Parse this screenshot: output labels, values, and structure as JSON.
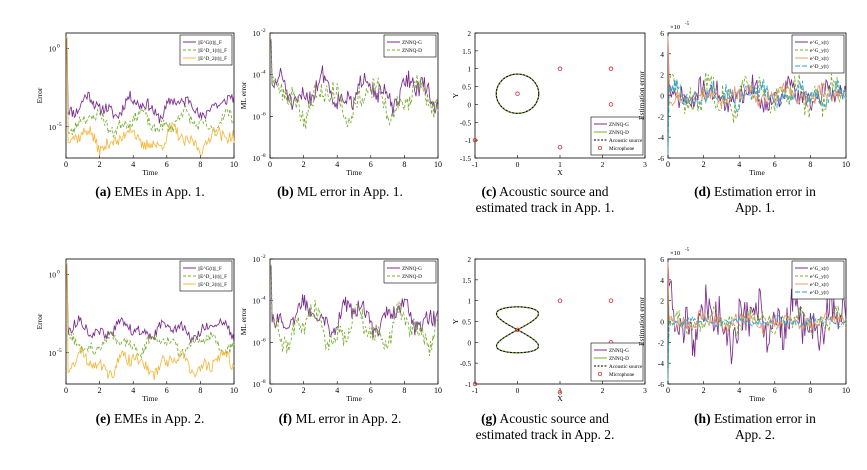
{
  "chart_data": [
    {
      "id": "a",
      "type": "line",
      "yscale": "log",
      "xlabel": "Time",
      "ylabel": "Error",
      "xlim": [
        0,
        10
      ],
      "ylim": [
        1e-07,
        10
      ],
      "xticks": [
        "0",
        "2",
        "4",
        "6",
        "8",
        "10"
      ],
      "yticks": [
        {
          "v": 1,
          "t": "10",
          "e": "0"
        },
        {
          "v": 1e-05,
          "t": "10",
          "e": "-5"
        }
      ],
      "legend": "top-right",
      "series": [
        {
          "name": "||E^G(t)||_F",
          "color": "#7b2d8e",
          "dash": "",
          "base": 0.0002,
          "amp": 0.85,
          "seed": 11
        },
        {
          "name": "||E^D_1(t)||_F",
          "color": "#77ac30",
          "dash": "3,2",
          "base": 2e-05,
          "amp": 0.85,
          "seed": 23
        },
        {
          "name": "||E^D_2(t)||_F",
          "color": "#f5b942",
          "dash": "",
          "base": 1.5e-06,
          "amp": 0.9,
          "seed": 37
        }
      ],
      "caption": {
        "label": "(a)",
        "text": "EMEs in App. 1."
      }
    },
    {
      "id": "b",
      "type": "line",
      "yscale": "log",
      "xlabel": "Time",
      "ylabel": "ML error",
      "xlim": [
        0,
        10
      ],
      "ylim": [
        1e-08,
        0.01
      ],
      "xticks": [
        "0",
        "2",
        "4",
        "6",
        "8",
        "10"
      ],
      "yticks": [
        {
          "v": 0.01,
          "t": "10",
          "e": "-2"
        },
        {
          "v": 0.0001,
          "t": "10",
          "e": "-4"
        },
        {
          "v": 1e-06,
          "t": "10",
          "e": "-6"
        },
        {
          "v": 1e-08,
          "t": "10",
          "e": "-8"
        }
      ],
      "legend": "top-right",
      "series": [
        {
          "name": "ZNNQ-G",
          "color": "#7b2d8e",
          "dash": "",
          "base": 1.5e-05,
          "amp": 1.0,
          "seed": 51
        },
        {
          "name": "ZNNQ-D",
          "color": "#77ac30",
          "dash": "3,2",
          "base": 6e-06,
          "amp": 1.1,
          "seed": 63
        }
      ],
      "caption": {
        "label": "(b)",
        "text": "ML error in App. 1."
      }
    },
    {
      "id": "c",
      "type": "scatter",
      "xlabel": "X",
      "ylabel": "Y",
      "xlim": [
        -1,
        3
      ],
      "ylim": [
        -1.5,
        2
      ],
      "xticks": [
        "-1",
        "0",
        "1",
        "2",
        "3"
      ],
      "yticks": [
        "2",
        "1.5",
        "1",
        "0.5",
        "0",
        "-0.5",
        "-1",
        "-1.5"
      ],
      "legend": "bottom-right",
      "track": "circle",
      "source": [
        [
          -0.05,
          0.3
        ],
        [
          -0.05,
          0.3
        ]
      ],
      "microphones": [
        [
          0,
          0.3
        ],
        [
          1,
          1
        ],
        [
          2.2,
          1
        ],
        [
          2.2,
          0
        ],
        [
          1,
          -1.2
        ],
        [
          -1,
          -1
        ]
      ],
      "series": [
        {
          "name": "ZNNQ-G",
          "color": "#7b2d8e"
        },
        {
          "name": "ZNNQ-D",
          "color": "#77ac30"
        },
        {
          "name": "Acoustic source",
          "color": "#000000"
        },
        {
          "name": "Microphone",
          "color": "#d62728"
        }
      ],
      "caption": {
        "label": "(c)",
        "text": "Acoustic source and estimated track in App. 1."
      }
    },
    {
      "id": "d",
      "type": "line",
      "yscale": "linear",
      "xlabel": "Time",
      "ylabel": "Estimation error",
      "xlim": [
        0,
        10
      ],
      "ylim": [
        -6,
        6
      ],
      "multiplier": "×10",
      "multiplier_exp": "-5",
      "xticks": [
        "0",
        "2",
        "4",
        "6",
        "8",
        "10"
      ],
      "yticks": [
        "6",
        "4",
        "2",
        "0",
        "-2",
        "-4",
        "-6"
      ],
      "legend": "top-right",
      "series": [
        {
          "name": "e^G_x(t)",
          "color": "#7b2d8e",
          "dash": "",
          "amp": 1.4,
          "seed": 71
        },
        {
          "name": "e^G_y(t)",
          "color": "#77ac30",
          "dash": "3,2",
          "amp": 1.8,
          "seed": 83
        },
        {
          "name": "e^D_x(t)",
          "color": "#e89b6b",
          "dash": "",
          "amp": 0.9,
          "seed": 97
        },
        {
          "name": "e^D_y(t)",
          "color": "#2a9fd6",
          "dash": "5,2",
          "amp": 1.1,
          "seed": 101
        }
      ],
      "caption": {
        "label": "(d)",
        "text": "Estimation error in App. 1."
      }
    },
    {
      "id": "e",
      "type": "line",
      "yscale": "log",
      "xlabel": "Time",
      "ylabel": "Error",
      "xlim": [
        0,
        10
      ],
      "ylim": [
        1e-07,
        10
      ],
      "xticks": [
        "0",
        "2",
        "4",
        "6",
        "8",
        "10"
      ],
      "yticks": [
        {
          "v": 1,
          "t": "10",
          "e": "0"
        },
        {
          "v": 1e-05,
          "t": "10",
          "e": "-5"
        }
      ],
      "legend": "top-right",
      "series": [
        {
          "name": "||E^G(t)||_F",
          "color": "#7b2d8e",
          "dash": "",
          "base": 0.0003,
          "amp": 0.7,
          "seed": 113
        },
        {
          "name": "||E^D_1(t)||_F",
          "color": "#77ac30",
          "dash": "3,2",
          "base": 4e-05,
          "amp": 0.8,
          "seed": 127
        },
        {
          "name": "||E^D_2(t)||_F",
          "color": "#f5b942",
          "dash": "",
          "base": 2e-06,
          "amp": 0.9,
          "seed": 131
        }
      ],
      "caption": {
        "label": "(e)",
        "text": "EMEs in App. 2."
      }
    },
    {
      "id": "f",
      "type": "line",
      "yscale": "log",
      "xlabel": "Time",
      "ylabel": "ML error",
      "xlim": [
        0,
        10
      ],
      "ylim": [
        1e-08,
        0.01
      ],
      "xticks": [
        "0",
        "2",
        "4",
        "6",
        "8",
        "10"
      ],
      "yticks": [
        {
          "v": 0.01,
          "t": "10",
          "e": "-2"
        },
        {
          "v": 0.0001,
          "t": "10",
          "e": "-4"
        },
        {
          "v": 1e-06,
          "t": "10",
          "e": "-6"
        },
        {
          "v": 1e-08,
          "t": "10",
          "e": "-8"
        }
      ],
      "legend": "top-right",
      "series": [
        {
          "name": "ZNNQ-G",
          "color": "#7b2d8e",
          "dash": "",
          "base": 2e-05,
          "amp": 0.9,
          "seed": 141
        },
        {
          "name": "ZNNQ-D",
          "color": "#77ac30",
          "dash": "3,2",
          "base": 5e-06,
          "amp": 1.1,
          "seed": 153
        }
      ],
      "caption": {
        "label": "(f)",
        "text": "ML error in App. 2."
      }
    },
    {
      "id": "g",
      "type": "scatter",
      "xlabel": "X",
      "ylabel": "Y",
      "xlim": [
        -1,
        3
      ],
      "ylim": [
        -1,
        2
      ],
      "xticks": [
        "-1",
        "0",
        "1",
        "2",
        "3"
      ],
      "yticks": [
        "2",
        "1.5",
        "1",
        "0.5",
        "0",
        "-0.5",
        "-1"
      ],
      "legend": "bottom-right",
      "track": "lemniscate",
      "microphones": [
        [
          0,
          0.3
        ],
        [
          1,
          1
        ],
        [
          2.2,
          1
        ],
        [
          2.2,
          0
        ],
        [
          1,
          -1.2
        ],
        [
          -1,
          -1
        ]
      ],
      "series": [
        {
          "name": "ZNNQ-G",
          "color": "#7b2d8e"
        },
        {
          "name": "ZNNQ-D",
          "color": "#77ac30"
        },
        {
          "name": "Acoustic source",
          "color": "#000000"
        },
        {
          "name": "Microphone",
          "color": "#d62728"
        }
      ],
      "caption": {
        "label": "(g)",
        "text": "Acoustic source and estimated track in App. 2."
      }
    },
    {
      "id": "h",
      "type": "line",
      "yscale": "linear",
      "xlabel": "Time",
      "ylabel": "Estimation error",
      "xlim": [
        0,
        10
      ],
      "ylim": [
        -6,
        6
      ],
      "multiplier": "×10",
      "multiplier_exp": "-5",
      "xticks": [
        "0",
        "2",
        "4",
        "6",
        "8",
        "10"
      ],
      "yticks": [
        "6",
        "4",
        "2",
        "0",
        "-2",
        "-4",
        "-6"
      ],
      "legend": "top-right",
      "series": [
        {
          "name": "e^G_x(t)",
          "color": "#7b2d8e",
          "dash": "",
          "amp": 2.6,
          "seed": 171
        },
        {
          "name": "e^G_y(t)",
          "color": "#77ac30",
          "dash": "3,2",
          "amp": 1.0,
          "seed": 183
        },
        {
          "name": "e^D_x(t)",
          "color": "#e89b6b",
          "dash": "",
          "amp": 0.8,
          "seed": 197
        },
        {
          "name": "e^D_y(t)",
          "color": "#2a9fd6",
          "dash": "5,2",
          "amp": 0.4,
          "seed": 211
        }
      ],
      "caption": {
        "label": "(h)",
        "text": "Estimation error in App. 2."
      }
    }
  ]
}
